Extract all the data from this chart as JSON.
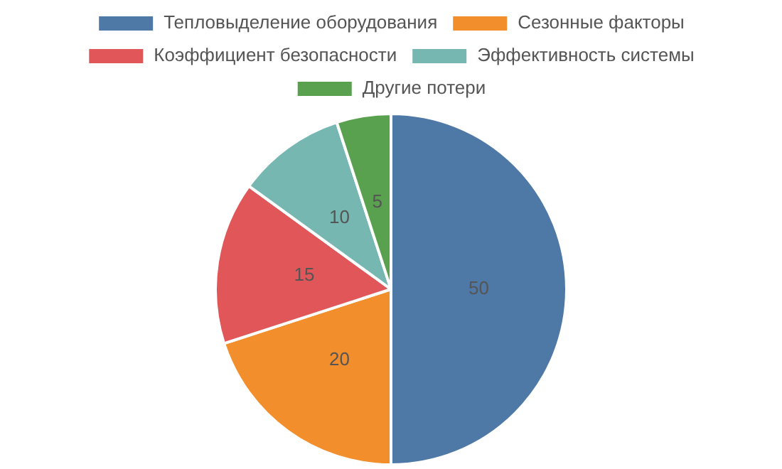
{
  "chart_data": {
    "type": "pie",
    "categories": [
      "Тепловыделение оборудования",
      "Сезонные факторы",
      "Коэффициент безопасности",
      "Эффективность системы",
      "Другие потери"
    ],
    "values": [
      50,
      20,
      15,
      10,
      5
    ],
    "colors": [
      "#4e79a7",
      "#f28e2b",
      "#e15759",
      "#76b7b2",
      "#59a14f"
    ],
    "data_labels": true,
    "legend": "top"
  }
}
